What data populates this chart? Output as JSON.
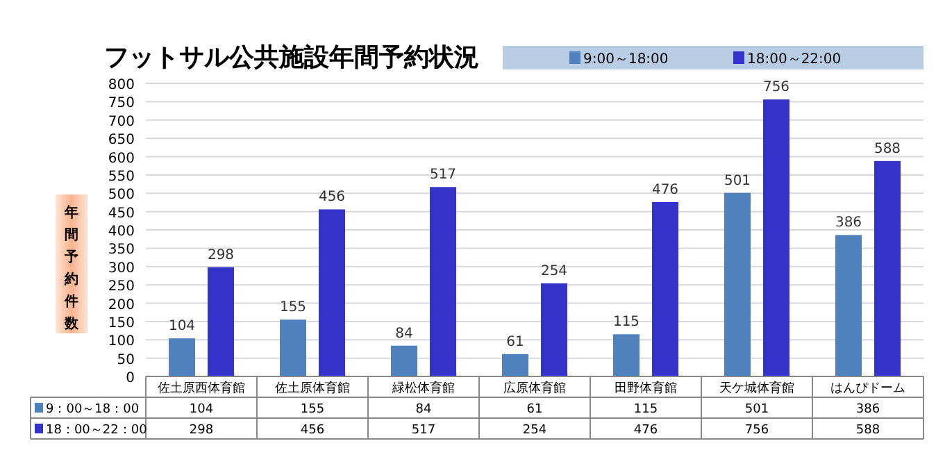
{
  "chart_data": {
    "type": "bar",
    "title": "フットサル公共施設年間予約状況",
    "ylabel": "年間予約件数",
    "categories": [
      "佐土原西体育館",
      "佐土原体育館",
      "緑松体育館",
      "広原体育館",
      "田野体育館",
      "天ケ城体育館",
      "はんぴドーム"
    ],
    "series": [
      {
        "name": "9:00～18:00",
        "color": "#4f81bd",
        "values": [
          104,
          155,
          84,
          61,
          115,
          501,
          386
        ],
        "value_labels": [
          "104",
          "155",
          "84",
          "61",
          "115",
          "501",
          "386"
        ]
      },
      {
        "name": "18:00～22:00",
        "color": "#3333cc",
        "values": [
          298,
          456,
          517,
          254,
          476,
          756,
          588
        ],
        "value_labels": [
          "298",
          "456",
          "517",
          "254",
          "476",
          "756",
          "588"
        ]
      }
    ],
    "ylim": [
      0,
      800
    ],
    "yticks": [
      0,
      50,
      100,
      150,
      200,
      250,
      300,
      350,
      400,
      450,
      500,
      550,
      600,
      650,
      700,
      750,
      800
    ],
    "grid": "y",
    "legend": "top right",
    "annotations": [
      "9：00～18：00",
      "104",
      "155",
      "84",
      "61",
      "115",
      "501",
      "386",
      "18：00～22：00",
      "298",
      "456",
      "517",
      "254",
      "476",
      "756",
      "588"
    ]
  }
}
